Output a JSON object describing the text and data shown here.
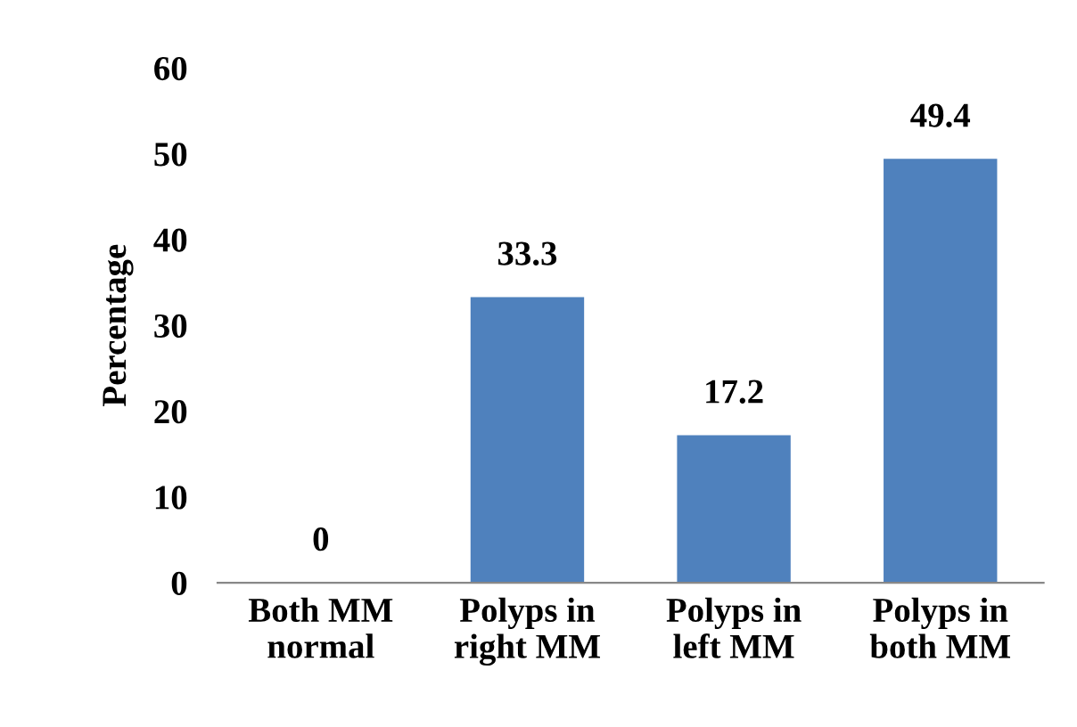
{
  "chart_data": {
    "type": "bar",
    "ylabel": "Percentage",
    "categories": [
      "Both MM\nnormal",
      "Polyps in\nright MM",
      "Polyps in\nleft MM",
      "Polyps in\nboth MM"
    ],
    "values": [
      0,
      33.3,
      17.2,
      49.4
    ],
    "color": "#4f81bd",
    "ylim": [
      0,
      60
    ],
    "yticks": [
      0,
      10,
      20,
      30,
      40,
      50,
      60
    ],
    "grid": false,
    "data_labels": true
  }
}
